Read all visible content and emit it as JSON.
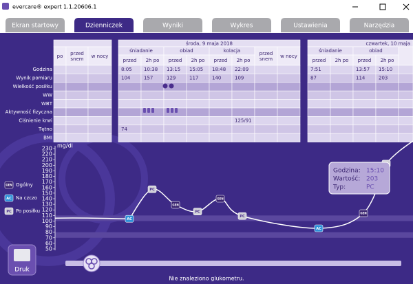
{
  "window": {
    "title": "evercare® expert 1.1.20606.1"
  },
  "tabs": [
    "Ekran startowy",
    "Dzienniczek",
    "Wyniki",
    "Wykres",
    "Ustawienia",
    "Narzędzia"
  ],
  "active_tab": 1,
  "table": {
    "row_labels": [
      "Godzina",
      "Wynik pomiaru",
      "Wielkość posiłku",
      "WW",
      "WBT",
      "Aktywność fizyczna",
      "Ciśnienie krwi",
      "Tętno",
      "BMI"
    ],
    "days": [
      {
        "columns": [
          {
            "cols": [
              "po"
            ]
          },
          {
            "cols": [
              "przed snem"
            ]
          },
          {
            "cols": [
              "w nocy"
            ]
          }
        ],
        "rows": [
          [
            null,
            null,
            null
          ],
          [
            null,
            null,
            null
          ],
          [
            null,
            null,
            null
          ],
          [
            null,
            null,
            null
          ],
          [
            null,
            null,
            null
          ],
          [
            null,
            null,
            null
          ],
          [
            null,
            null,
            null
          ],
          [
            null,
            null,
            null
          ],
          [
            null,
            null,
            null
          ]
        ]
      },
      {
        "date": "środa, 9 maja 2018",
        "columns": [
          {
            "name": "śniadanie",
            "cols": [
              "przed",
              "2h po"
            ]
          },
          {
            "name": "obiad",
            "cols": [
              "przed",
              "2h po"
            ]
          },
          {
            "name": "kolacja",
            "cols": [
              "przed",
              "2h po"
            ]
          },
          {
            "cols": [
              "przed snem"
            ]
          },
          {
            "cols": [
              "w nocy"
            ]
          }
        ],
        "rows": [
          [
            "8:05",
            "10:38",
            "13:15",
            "15:05",
            "18:48",
            "22:09",
            null,
            null
          ],
          [
            "104",
            "157",
            "129",
            "117",
            "140",
            "109",
            null,
            null
          ],
          [
            null,
            null,
            null,
            null,
            null,
            null,
            null,
            null
          ],
          [
            null,
            null,
            null,
            null,
            null,
            null,
            null,
            null
          ],
          [
            null,
            null,
            null,
            null,
            null,
            null,
            null,
            null
          ],
          [
            null,
            null,
            null,
            null,
            null,
            null,
            null,
            null
          ],
          [
            null,
            null,
            null,
            null,
            null,
            "125/91",
            null,
            null
          ],
          [
            "74",
            null,
            null,
            null,
            null,
            null,
            null,
            null
          ],
          [
            null,
            null,
            null,
            null,
            null,
            null,
            null,
            null
          ]
        ]
      },
      {
        "date": "czwartek, 10 maja",
        "columns": [
          {
            "name": "śniadanie",
            "cols": [
              "przed",
              "2h po"
            ]
          },
          {
            "name": "obiad",
            "cols": [
              "przed",
              "2h po"
            ]
          }
        ],
        "rows": [
          [
            "7:51",
            null,
            "13:57",
            "15:10"
          ],
          [
            "87",
            null,
            "114",
            "203"
          ],
          [
            null,
            null,
            null,
            null
          ],
          [
            null,
            null,
            null,
            null
          ],
          [
            null,
            null,
            null,
            null
          ],
          [
            null,
            null,
            null,
            null
          ],
          [
            null,
            null,
            null,
            null
          ],
          [
            null,
            null,
            null,
            null
          ],
          [
            null,
            null,
            null,
            null
          ]
        ]
      }
    ]
  },
  "chart": {
    "type": "line",
    "unit": "mg/dl",
    "values": [
      104,
      157,
      129,
      117,
      140,
      109,
      87,
      114,
      203
    ],
    "types": [
      "AC",
      "PC",
      "GEN",
      "PC",
      "GEN",
      "PC",
      "AC",
      "GEN",
      "PC"
    ],
    "ylim": [
      50,
      230
    ],
    "yticks": [
      50,
      60,
      70,
      80,
      90,
      100,
      110,
      120,
      130,
      140,
      150,
      160,
      170,
      180,
      190,
      200,
      210,
      220,
      230
    ],
    "legend": [
      {
        "badge": "GEN",
        "label": "Ogólny"
      },
      {
        "badge": "AC",
        "label": "Na czczo"
      },
      {
        "badge": "PC",
        "label": "Po posiłku"
      }
    ],
    "tooltip": [
      {
        "label": "Godzina:",
        "value": "15:10"
      },
      {
        "label": "Wartość:",
        "value": "203"
      },
      {
        "label": "Typ:",
        "value": "PC"
      }
    ]
  },
  "print_button": "Druk",
  "status": "Nie znaleziono glukometru."
}
